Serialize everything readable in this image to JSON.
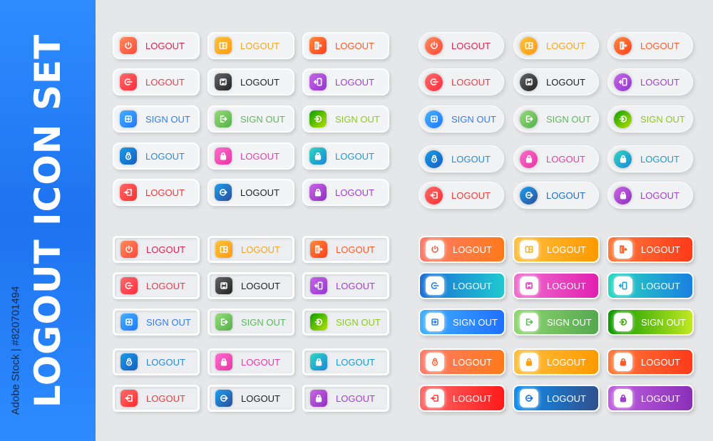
{
  "sidebar": {
    "title": "LOGOUT ICON SET",
    "watermark": "Adobe Stock | #820701494",
    "color": "#2580f8"
  },
  "buttons": [
    {
      "label": "LOGOUT",
      "icon": "power-icon",
      "g1": "#ff8a5a",
      "g2": "#ff4a3a",
      "text": "#e0234e"
    },
    {
      "label": "LOGOUT",
      "icon": "door-box-icon",
      "g1": "#ffc23a",
      "g2": "#ff9a10",
      "text": "#f5a623"
    },
    {
      "label": "LOGOUT",
      "icon": "door-exit-icon",
      "g1": "#ff8a3a",
      "g2": "#ff3d1f",
      "text": "#ff5a2a"
    },
    {
      "label": "LOGOUT",
      "icon": "power-arrow-icon",
      "g1": "#ff6a6a",
      "g2": "#ff2d3d",
      "text": "#f03a47"
    },
    {
      "label": "LOGOUT",
      "icon": "swap-icon",
      "g1": "#666666",
      "g2": "#222222",
      "text": "#222222"
    },
    {
      "label": "LOGOUT",
      "icon": "door-enter-icon",
      "g1": "#c865e8",
      "g2": "#9236d0",
      "text": "#a23fd0"
    },
    {
      "label": "SIGN OUT",
      "icon": "sign-in-box-icon",
      "g1": "#45b0ff",
      "g2": "#1f78ff",
      "text": "#2f7cf6"
    },
    {
      "label": "SIGN OUT",
      "icon": "exit-box-icon",
      "g1": "#95dc78",
      "g2": "#55b04a",
      "text": "#5cb85c"
    },
    {
      "label": "SIGN OUT",
      "icon": "circle-arrow-icon",
      "g1": "#0aa000",
      "g2": "#b8e000",
      "text": "#8acb1f"
    },
    {
      "label": "LOGOUT",
      "icon": "lock-round-icon",
      "g1": "#1a9ae8",
      "g2": "#1560c0",
      "text": "#2a8ad8"
    },
    {
      "label": "LOGOUT",
      "icon": "lock-icon",
      "g1": "#ff6ccc",
      "g2": "#e835a5",
      "text": "#ea3aa8"
    },
    {
      "label": "LOGOUT",
      "icon": "lock-icon",
      "g1": "#2ed8c0",
      "g2": "#1b86d8",
      "text": "#1a9ad8"
    },
    {
      "label": "LOGOUT",
      "icon": "enter-icon",
      "g1": "#ff6a6a",
      "g2": "#ff2d2d",
      "text": "#f03a3a"
    },
    {
      "label": "LOGOUT",
      "icon": "circle-arrow-right-icon",
      "g1": "#1aa0f0",
      "g2": "#2c4e9a",
      "text": "#222222"
    },
    {
      "label": "LOGOUT",
      "icon": "lock-icon",
      "g1": "#cc66e6",
      "g2": "#8e2fc0",
      "text": "#a23fd0"
    }
  ],
  "pill_text_overrides": {
    "13": "#1a6fd0"
  },
  "gradient_buttons": [
    {
      "label": "LOGOUT",
      "icon": "power-icon",
      "g1": "#ff7a6a",
      "g2": "#ff7a1a",
      "ic": "#ff5a3a"
    },
    {
      "label": "LOGOUT",
      "icon": "door-box-icon",
      "g1": "#ffc040",
      "g2": "#ff9a00",
      "ic": "#ffb020"
    },
    {
      "label": "LOGOUT",
      "icon": "door-exit-icon",
      "g1": "#ff7a3a",
      "g2": "#ff3a1a",
      "ic": "#ff5a2a"
    },
    {
      "label": "LOGOUT",
      "icon": "power-arrow-icon",
      "g1": "#1a6fd8",
      "g2": "#20c8d0",
      "ic": "#1a7ae0"
    },
    {
      "label": "LOGOUT",
      "icon": "swap-icon",
      "g1": "#f070d0",
      "g2": "#e020b0",
      "ic": "#e040c0"
    },
    {
      "label": "LOGOUT",
      "icon": "door-enter-icon",
      "g1": "#28d8c0",
      "g2": "#1a80e0",
      "ic": "#1aa8d8"
    },
    {
      "label": "SIGN OUT",
      "icon": "sign-in-box-icon",
      "g1": "#40b0ff",
      "g2": "#1f70ff",
      "ic": "#2f80f6"
    },
    {
      "label": "SIGN OUT",
      "icon": "exit-box-icon",
      "g1": "#90d870",
      "g2": "#55a850",
      "ic": "#5cb85c"
    },
    {
      "label": "SIGN OUT",
      "icon": "circle-arrow-icon",
      "g1": "#0a9a00",
      "g2": "#c0e820",
      "ic": "#40b010"
    },
    {
      "label": "LOGOUT",
      "icon": "lock-round-icon",
      "g1": "#ff7a6a",
      "g2": "#ff7a1a",
      "ic": "#ff6a3a"
    },
    {
      "label": "LOGOUT",
      "icon": "lock-icon",
      "g1": "#ffc040",
      "g2": "#ff9a00",
      "ic": "#ffa010"
    },
    {
      "label": "LOGOUT",
      "icon": "lock-icon",
      "g1": "#ff7a3a",
      "g2": "#ff3a1a",
      "ic": "#ff5a2a"
    },
    {
      "label": "LOGOUT",
      "icon": "enter-icon",
      "g1": "#ff6a6a",
      "g2": "#ff1a1a",
      "ic": "#ff3a3a"
    },
    {
      "label": "LOGOUT",
      "icon": "circle-arrow-right-icon",
      "g1": "#1090f0",
      "g2": "#30508e",
      "ic": "#1a70d0"
    },
    {
      "label": "LOGOUT",
      "icon": "lock-icon",
      "g1": "#c060e0",
      "g2": "#8a30b8",
      "ic": "#a040d0"
    }
  ]
}
